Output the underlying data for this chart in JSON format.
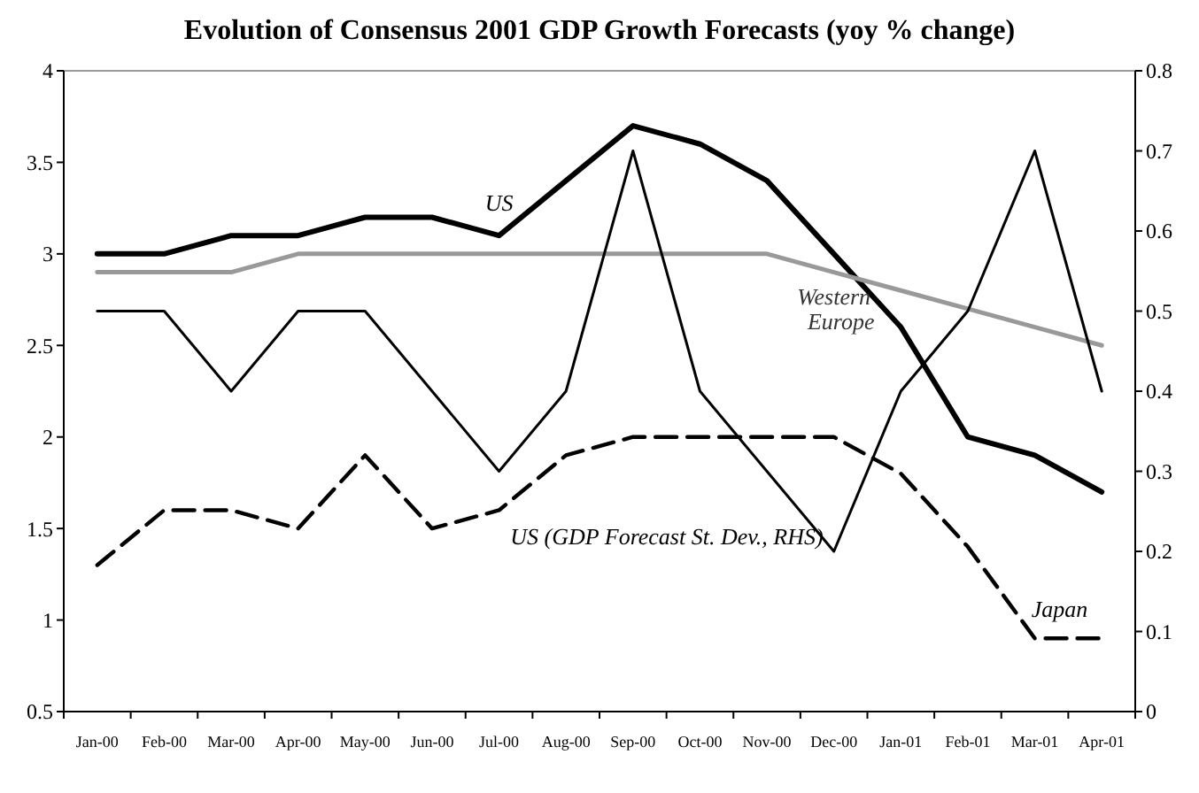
{
  "chart_data": {
    "type": "line",
    "title": "Evolution of Consensus 2001 GDP Growth Forecasts (yoy % change)",
    "categories": [
      "Jan-00",
      "Feb-00",
      "Mar-00",
      "Apr-00",
      "May-00",
      "Jun-00",
      "Jul-00",
      "Aug-00",
      "Sep-00",
      "Oct-00",
      "Nov-00",
      "Dec-00",
      "Jan-01",
      "Feb-01",
      "Mar-01",
      "Apr-01"
    ],
    "series": [
      {
        "name": "US",
        "color": "#000000",
        "values": [
          3.0,
          3.0,
          3.1,
          3.1,
          3.2,
          3.2,
          3.1,
          3.4,
          3.7,
          3.6,
          3.4,
          3.0,
          2.6,
          2.0,
          1.9,
          1.7
        ]
      },
      {
        "name": "Western Europe",
        "color": "#999999",
        "values": [
          2.9,
          2.9,
          2.9,
          3.0,
          3.0,
          3.0,
          3.0,
          3.0,
          3.0,
          3.0,
          3.0,
          2.9,
          2.8,
          2.7,
          2.6,
          2.5
        ]
      },
      {
        "name": "US (GDP Forecast St. Dev., RHS)",
        "color": "#000000",
        "axis": "y2",
        "values": [
          0.5,
          0.5,
          0.4,
          0.5,
          0.5,
          0.4,
          0.3,
          0.4,
          0.7,
          0.4,
          0.3,
          0.2,
          0.4,
          0.5,
          0.7,
          0.4
        ]
      },
      {
        "name": "Japan",
        "color": "#000000",
        "line_style": "dashed",
        "values": [
          1.3,
          1.6,
          1.6,
          1.5,
          1.9,
          1.5,
          1.6,
          1.9,
          2.0,
          2.0,
          2.0,
          2.0,
          1.8,
          1.4,
          0.9,
          0.9
        ]
      }
    ],
    "ylim": [
      0.5,
      4
    ],
    "yticks": [
      0.5,
      1,
      1.5,
      2,
      2.5,
      3,
      3.5,
      4
    ],
    "y2lim": [
      0,
      0.8
    ],
    "y2ticks": [
      0,
      0.1,
      0.2,
      0.3,
      0.4,
      0.5,
      0.6,
      0.7,
      0.8
    ],
    "grid": false,
    "line_style": "solid"
  }
}
